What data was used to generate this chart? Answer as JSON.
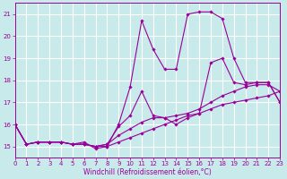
{
  "background_color": "#c8eaea",
  "grid_color": "#ffffff",
  "line_color": "#990099",
  "xlabel": "Windchill (Refroidissement éolien,°C)",
  "xlim": [
    0,
    23
  ],
  "ylim": [
    14.5,
    21.5
  ],
  "yticks": [
    15,
    16,
    17,
    18,
    19,
    20,
    21
  ],
  "xticks": [
    0,
    1,
    2,
    3,
    4,
    5,
    6,
    7,
    8,
    9,
    10,
    11,
    12,
    13,
    14,
    15,
    16,
    17,
    18,
    19,
    20,
    21,
    22,
    23
  ],
  "series": [
    [
      16.0,
      15.1,
      15.2,
      15.2,
      15.2,
      15.1,
      15.1,
      15.0,
      15.0,
      15.2,
      15.4,
      15.6,
      15.8,
      16.0,
      16.2,
      16.4,
      16.5,
      16.7,
      16.9,
      17.0,
      17.1,
      17.2,
      17.3,
      17.5
    ],
    [
      16.0,
      15.1,
      15.2,
      15.2,
      15.2,
      15.1,
      15.1,
      15.0,
      15.1,
      15.5,
      15.8,
      16.1,
      16.3,
      16.3,
      16.4,
      16.5,
      16.7,
      17.0,
      17.3,
      17.5,
      17.7,
      17.8,
      17.8,
      17.5
    ],
    [
      16.0,
      15.1,
      15.2,
      15.2,
      15.2,
      15.1,
      15.1,
      15.0,
      15.1,
      15.9,
      16.4,
      17.5,
      16.4,
      16.3,
      16.0,
      16.3,
      16.5,
      18.8,
      19.0,
      17.9,
      17.8,
      17.9,
      17.9,
      17.0
    ],
    [
      16.0,
      15.1,
      15.2,
      15.2,
      15.2,
      15.1,
      15.2,
      14.9,
      15.0,
      16.0,
      17.7,
      20.7,
      19.4,
      18.5,
      18.5,
      21.0,
      21.1,
      21.1,
      20.8,
      19.0,
      17.9,
      17.9,
      17.9,
      17.0
    ]
  ]
}
